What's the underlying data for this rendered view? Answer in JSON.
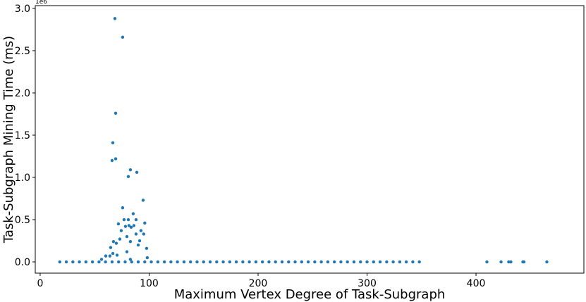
{
  "chart_data": {
    "type": "scatter",
    "xlabel": "Maximum Vertex Degree of Task-Subgraph",
    "ylabel": "Task-Subgraph Mining Time (ms)",
    "y_offset_label": "1e6",
    "color": "#1f77b4",
    "xlim": [
      -4.5,
      499
    ],
    "ylim": [
      -0.133,
      3.033
    ],
    "xticks": [
      0,
      100,
      200,
      300,
      400
    ],
    "yticks": [
      {
        "value": 0,
        "label": "0.0"
      },
      0.5,
      {
        "value": 1,
        "label": "1.0"
      },
      1.5,
      {
        "value": 2,
        "label": "2.0"
      },
      2.5,
      {
        "value": 3,
        "label": "3.0"
      }
    ],
    "points": [
      [
        18,
        0
      ],
      [
        24,
        0
      ],
      [
        30,
        0
      ],
      [
        36,
        0
      ],
      [
        42,
        0
      ],
      [
        48,
        0
      ],
      [
        54,
        0
      ],
      [
        60,
        0
      ],
      [
        66,
        0
      ],
      [
        72,
        0
      ],
      [
        78,
        0
      ],
      [
        84,
        0
      ],
      [
        90,
        0
      ],
      [
        96,
        0
      ],
      [
        102,
        0
      ],
      [
        108,
        0
      ],
      [
        114,
        0
      ],
      [
        120,
        0
      ],
      [
        126,
        0
      ],
      [
        132,
        0
      ],
      [
        138,
        0
      ],
      [
        144,
        0
      ],
      [
        150,
        0
      ],
      [
        156,
        0
      ],
      [
        162,
        0
      ],
      [
        168,
        0
      ],
      [
        174,
        0
      ],
      [
        180,
        0
      ],
      [
        186,
        0
      ],
      [
        192,
        0
      ],
      [
        198,
        0
      ],
      [
        204,
        0
      ],
      [
        210,
        0
      ],
      [
        216,
        0
      ],
      [
        222,
        0
      ],
      [
        228,
        0
      ],
      [
        234,
        0
      ],
      [
        240,
        0
      ],
      [
        246,
        0
      ],
      [
        252,
        0
      ],
      [
        258,
        0
      ],
      [
        264,
        0
      ],
      [
        270,
        0
      ],
      [
        276,
        0
      ],
      [
        282,
        0
      ],
      [
        288,
        0
      ],
      [
        294,
        0
      ],
      [
        300,
        0
      ],
      [
        306,
        0
      ],
      [
        312,
        0
      ],
      [
        318,
        0
      ],
      [
        324,
        0
      ],
      [
        330,
        0
      ],
      [
        336,
        0
      ],
      [
        342,
        0
      ],
      [
        348,
        0
      ],
      [
        410,
        0
      ],
      [
        423,
        0
      ],
      [
        430,
        0
      ],
      [
        432,
        0
      ],
      [
        443,
        0
      ],
      [
        444,
        0
      ],
      [
        465,
        0
      ],
      [
        68.6,
        2.88
      ],
      [
        75.7,
        2.66
      ],
      [
        69.3,
        1.76
      ],
      [
        66.7,
        1.41
      ],
      [
        69.3,
        1.22
      ],
      [
        66,
        1.2
      ],
      [
        82.8,
        1.09
      ],
      [
        88.7,
        1.06
      ],
      [
        80.9,
        1.01
      ],
      [
        94.5,
        0.73
      ],
      [
        75.7,
        0.64
      ],
      [
        85.4,
        0.57
      ],
      [
        80.9,
        0.5
      ],
      [
        77,
        0.5
      ],
      [
        88,
        0.5
      ],
      [
        96,
        0.46
      ],
      [
        71.8,
        0.45
      ],
      [
        81.5,
        0.43
      ],
      [
        78.3,
        0.42
      ],
      [
        86,
        0.43
      ],
      [
        83.5,
        0.41
      ],
      [
        74.4,
        0.37
      ],
      [
        92.5,
        0.37
      ],
      [
        88,
        0.33
      ],
      [
        95,
        0.33
      ],
      [
        79.6,
        0.3
      ],
      [
        73.1,
        0.27
      ],
      [
        82.8,
        0.24
      ],
      [
        91.3,
        0.25
      ],
      [
        67.3,
        0.24
      ],
      [
        69.9,
        0.22
      ],
      [
        90,
        0.2
      ],
      [
        97.7,
        0.16
      ],
      [
        64.7,
        0.17
      ],
      [
        79.6,
        0.12
      ],
      [
        66.7,
        0.1
      ],
      [
        70.6,
        0.08
      ],
      [
        60.2,
        0.07
      ],
      [
        64,
        0.07
      ],
      [
        98.3,
        0.05
      ],
      [
        82.8,
        0.03
      ],
      [
        56.3,
        0.03
      ]
    ]
  }
}
